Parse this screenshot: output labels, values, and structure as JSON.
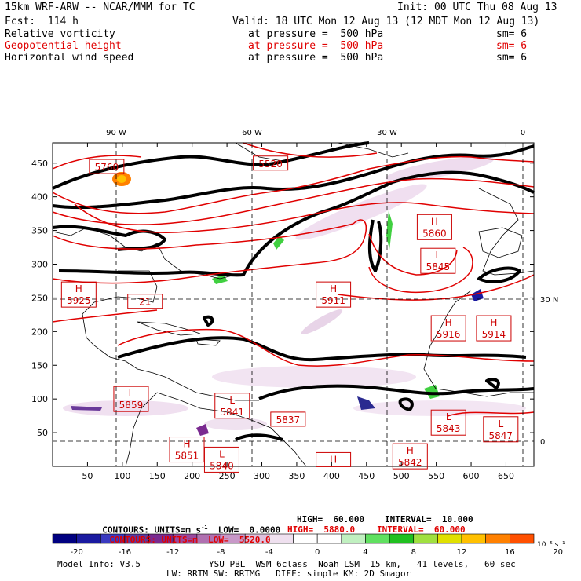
{
  "header": {
    "model": "15km WRF-ARW -- NCAR/MMM for TC",
    "init": "Init: 00 UTC Thu 08 Aug 13",
    "fcst": "Fcst:  114 h",
    "valid": "Valid: 18 UTC Mon 12 Aug 13 (12 MDT Mon 12 Aug 13)",
    "fields": [
      {
        "name": "Relative vorticity",
        "pressure": "at pressure =  500 hPa",
        "sm": "sm= 6",
        "color": "#000000"
      },
      {
        "name": "Geopotential height",
        "pressure": "at pressure =  500 hPa",
        "sm": "sm= 6",
        "color": "#e00000"
      },
      {
        "name": "Horizontal wind speed",
        "pressure": "at pressure =  500 hPa",
        "sm": "sm= 6",
        "color": "#000000"
      }
    ]
  },
  "colors": {
    "height_contour": "#e00000",
    "wind_contour": "#000000",
    "coast": "#000000",
    "label_box": "#cc0000"
  },
  "chart_data": {
    "type": "contour-map",
    "x_ticks": [
      "50",
      "100",
      "150",
      "200",
      "250",
      "300",
      "350",
      "400",
      "450",
      "500",
      "550",
      "600",
      "650"
    ],
    "y_ticks": [
      "50",
      "100",
      "150",
      "200",
      "250",
      "300",
      "350",
      "400",
      "450"
    ],
    "xlim": [
      0,
      690
    ],
    "ylim": [
      0,
      480
    ],
    "lon_labels": [
      "90 W",
      "60 W",
      "30 W",
      "0"
    ],
    "lat_labels": [
      "30 N",
      "0"
    ],
    "height_centers": [
      {
        "type": "",
        "value": "5760",
        "x": 55,
        "y": 445
      },
      {
        "type": "",
        "value": "5520",
        "x": 290,
        "y": 450
      },
      {
        "type": "H",
        "value": "5860",
        "x": 525,
        "y": 355
      },
      {
        "type": "L",
        "value": "5845",
        "x": 530,
        "y": 305
      },
      {
        "type": "H",
        "value": "5925",
        "x": 15,
        "y": 255
      },
      {
        "type": "",
        "value": "21",
        "x": 110,
        "y": 245
      },
      {
        "type": "H",
        "value": "5911",
        "x": 380,
        "y": 255
      },
      {
        "type": "H",
        "value": "5916",
        "x": 545,
        "y": 205
      },
      {
        "type": "H",
        "value": "5914",
        "x": 610,
        "y": 205
      },
      {
        "type": "L",
        "value": "5859",
        "x": 90,
        "y": 100
      },
      {
        "type": "L",
        "value": "5841",
        "x": 235,
        "y": 90
      },
      {
        "type": "",
        "value": "5837",
        "x": 315,
        "y": 70
      },
      {
        "type": "L",
        "value": "5843",
        "x": 545,
        "y": 65
      },
      {
        "type": "L",
        "value": "5847",
        "x": 620,
        "y": 55
      },
      {
        "type": "H",
        "value": "5851",
        "x": 170,
        "y": 25
      },
      {
        "type": "L",
        "value": "5840",
        "x": 220,
        "y": 10
      },
      {
        "type": "H",
        "value": "",
        "x": 380,
        "y": 10
      },
      {
        "type": "H",
        "value": "5842",
        "x": 490,
        "y": 15
      }
    ],
    "colorbar": {
      "ticks": [
        "-20",
        "-16",
        "-12",
        "-8",
        "-4",
        "0",
        "4",
        "8",
        "12",
        "16",
        "20"
      ],
      "units": "10⁻⁵ s⁻¹",
      "colors": [
        "#000080",
        "#1a1aa0",
        "#3a3ac0",
        "#5a3aa0",
        "#7a2a90",
        "#9a4aa0",
        "#b070b0",
        "#c898c8",
        "#ddc0dd",
        "#efe0ef",
        "#ffffff",
        "#ffffff",
        "#c0f0c0",
        "#60e060",
        "#20c020",
        "#a0e040",
        "#e0e000",
        "#ffc000",
        "#ff8000",
        "#ff5000"
      ]
    },
    "contours_black": {
      "label": "CONTOURS:",
      "units": "UNITS=m s",
      "units_sup": "-1",
      "low": "LOW=  0.0000",
      "high": "HIGH=  60.000",
      "interval": "INTERVAL=  10.000"
    },
    "contours_red": {
      "label": "CONTOURS:",
      "units": "UNITS=m",
      "low": "LOW=  5520.0",
      "high": "HIGH=  5880.0",
      "interval": "INTERVAL=  60.000"
    }
  },
  "footer": {
    "model_info": "Model Info: V3.5",
    "line1": "YSU PBL  WSM 6class  Noah LSM  15 km,   41 levels,   60 sec",
    "line2": "LW: RRTM SW: RRTMG   DIFF: simple KM: 2D Smagor"
  }
}
